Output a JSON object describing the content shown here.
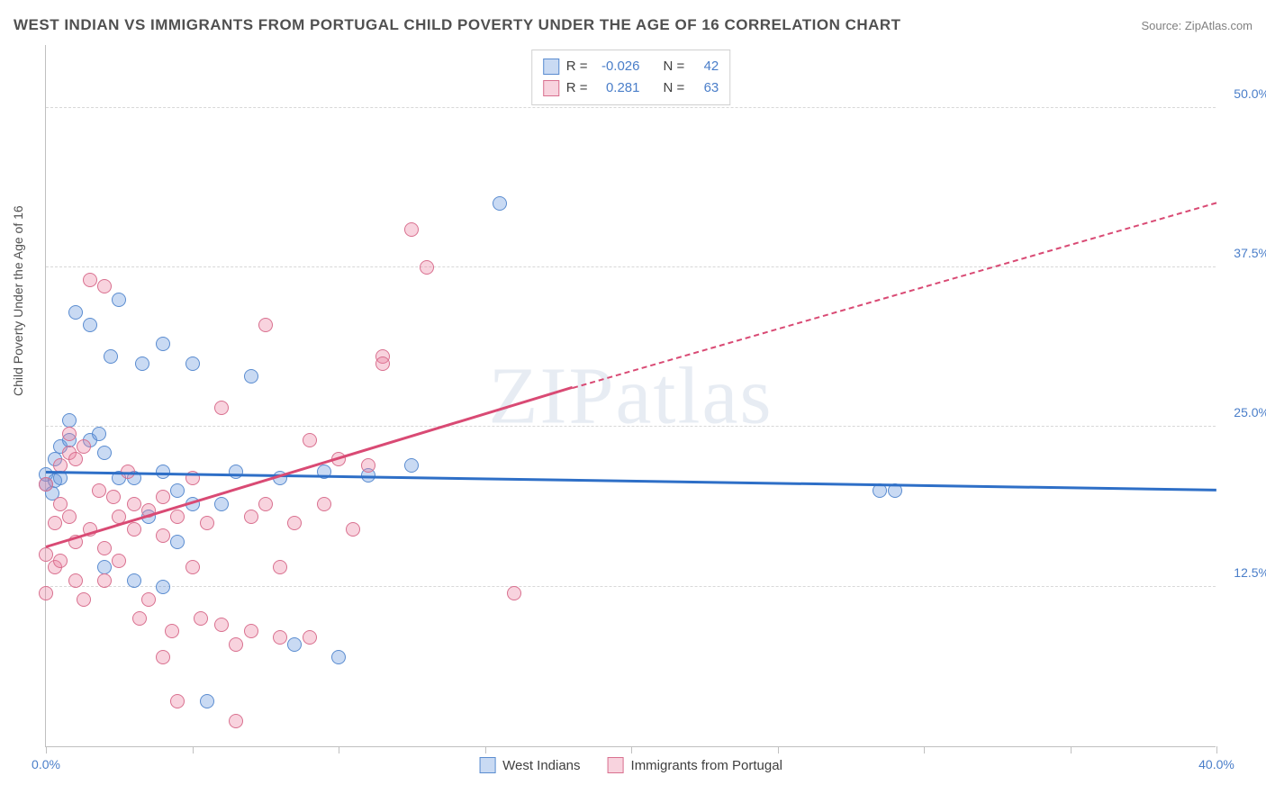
{
  "header": {
    "title": "WEST INDIAN VS IMMIGRANTS FROM PORTUGAL CHILD POVERTY UNDER THE AGE OF 16 CORRELATION CHART",
    "source": "Source: ZipAtlas.com"
  },
  "watermark": "ZIPatlas",
  "chart": {
    "type": "scatter",
    "y_label": "Child Poverty Under the Age of 16",
    "xlim": [
      0,
      40
    ],
    "ylim": [
      0,
      55
    ],
    "x_tick_positions": [
      0,
      5,
      10,
      15,
      20,
      25,
      30,
      35,
      40
    ],
    "x_tick_labels": {
      "0": "0.0%",
      "40": "40.0%"
    },
    "y_gridlines": [
      12.5,
      25.0,
      37.5,
      50.0
    ],
    "y_tick_labels": [
      "12.5%",
      "25.0%",
      "37.5%",
      "50.0%"
    ],
    "background_color": "#ffffff",
    "grid_color": "#d8d8d8",
    "axis_color": "#c0c0c0",
    "tick_label_color": "#4a7ec9",
    "point_radius": 8,
    "series": [
      {
        "name": "West Indians",
        "fill": "rgba(100,150,220,0.35)",
        "stroke": "#5a8cd0",
        "line_color": "#2e6fc7",
        "r": -0.026,
        "n": 42,
        "trend": {
          "x1": 0,
          "y1": 21.4,
          "x2": 40,
          "y2": 20.0
        },
        "points": [
          [
            0.0,
            21.3
          ],
          [
            0.0,
            20.5
          ],
          [
            0.3,
            22.5
          ],
          [
            0.3,
            20.8
          ],
          [
            0.5,
            23.5
          ],
          [
            0.5,
            21.0
          ],
          [
            0.8,
            25.5
          ],
          [
            0.8,
            24.0
          ],
          [
            1.0,
            34.0
          ],
          [
            1.5,
            33.0
          ],
          [
            1.5,
            24.0
          ],
          [
            1.8,
            24.5
          ],
          [
            2.0,
            23.0
          ],
          [
            2.0,
            14.0
          ],
          [
            2.2,
            30.5
          ],
          [
            2.5,
            35.0
          ],
          [
            2.5,
            21.0
          ],
          [
            3.0,
            21.0
          ],
          [
            3.0,
            13.0
          ],
          [
            3.3,
            30.0
          ],
          [
            3.5,
            18.0
          ],
          [
            4.0,
            31.5
          ],
          [
            4.0,
            21.5
          ],
          [
            4.0,
            12.5
          ],
          [
            4.5,
            20.0
          ],
          [
            4.5,
            16.0
          ],
          [
            5.0,
            30.0
          ],
          [
            5.0,
            19.0
          ],
          [
            5.5,
            3.5
          ],
          [
            6.0,
            19.0
          ],
          [
            6.5,
            21.5
          ],
          [
            7.0,
            29.0
          ],
          [
            8.0,
            21.0
          ],
          [
            8.5,
            8.0
          ],
          [
            9.5,
            21.5
          ],
          [
            10.0,
            7.0
          ],
          [
            11.0,
            21.2
          ],
          [
            12.5,
            22.0
          ],
          [
            15.5,
            42.5
          ],
          [
            28.5,
            20.0
          ],
          [
            29.0,
            20.0
          ],
          [
            0.2,
            19.8
          ]
        ]
      },
      {
        "name": "Immigrants from Portugal",
        "fill": "rgba(235,130,160,0.35)",
        "stroke": "#d9708f",
        "line_color": "#d94a74",
        "r": 0.281,
        "n": 63,
        "trend": {
          "x1": 0,
          "y1": 15.5,
          "x2": 18,
          "y2": 28.0
        },
        "trend_dash": {
          "x1": 18,
          "y1": 28.0,
          "x2": 40,
          "y2": 42.5
        },
        "points": [
          [
            0.0,
            20.5
          ],
          [
            0.0,
            15.0
          ],
          [
            0.0,
            12.0
          ],
          [
            0.3,
            17.5
          ],
          [
            0.3,
            14.0
          ],
          [
            0.5,
            22.0
          ],
          [
            0.5,
            19.0
          ],
          [
            0.5,
            14.5
          ],
          [
            0.8,
            24.5
          ],
          [
            0.8,
            23.0
          ],
          [
            0.8,
            18.0
          ],
          [
            1.0,
            22.5
          ],
          [
            1.0,
            16.0
          ],
          [
            1.0,
            13.0
          ],
          [
            1.3,
            23.5
          ],
          [
            1.3,
            11.5
          ],
          [
            1.5,
            36.5
          ],
          [
            1.5,
            17.0
          ],
          [
            1.8,
            20.0
          ],
          [
            2.0,
            36.0
          ],
          [
            2.0,
            15.5
          ],
          [
            2.0,
            13.0
          ],
          [
            2.3,
            19.5
          ],
          [
            2.5,
            18.0
          ],
          [
            2.5,
            14.5
          ],
          [
            2.8,
            21.5
          ],
          [
            3.0,
            19.0
          ],
          [
            3.0,
            17.0
          ],
          [
            3.2,
            10.0
          ],
          [
            3.5,
            18.5
          ],
          [
            3.5,
            11.5
          ],
          [
            4.0,
            19.5
          ],
          [
            4.0,
            16.5
          ],
          [
            4.0,
            7.0
          ],
          [
            4.3,
            9.0
          ],
          [
            4.5,
            18.0
          ],
          [
            4.5,
            3.5
          ],
          [
            5.0,
            21.0
          ],
          [
            5.0,
            14.0
          ],
          [
            5.3,
            10.0
          ],
          [
            5.5,
            17.5
          ],
          [
            6.0,
            26.5
          ],
          [
            6.0,
            9.5
          ],
          [
            6.5,
            8.0
          ],
          [
            6.5,
            2.0
          ],
          [
            7.0,
            18.0
          ],
          [
            7.0,
            9.0
          ],
          [
            7.5,
            33.0
          ],
          [
            7.5,
            19.0
          ],
          [
            8.0,
            14.0
          ],
          [
            8.0,
            8.5
          ],
          [
            8.5,
            17.5
          ],
          [
            9.0,
            24.0
          ],
          [
            9.0,
            8.5
          ],
          [
            9.5,
            19.0
          ],
          [
            10.0,
            22.5
          ],
          [
            10.5,
            17.0
          ],
          [
            11.0,
            22.0
          ],
          [
            11.5,
            30.5
          ],
          [
            11.5,
            30.0
          ],
          [
            12.5,
            40.5
          ],
          [
            13.0,
            37.5
          ],
          [
            16.0,
            12.0
          ]
        ]
      }
    ],
    "legend_top": [
      {
        "swatch_fill": "rgba(100,150,220,0.35)",
        "swatch_stroke": "#5a8cd0",
        "r_label": "R =",
        "r": "-0.026",
        "n_label": "N =",
        "n": "42"
      },
      {
        "swatch_fill": "rgba(235,130,160,0.35)",
        "swatch_stroke": "#d9708f",
        "r_label": "R =",
        "r": "0.281",
        "n_label": "N =",
        "n": "63"
      }
    ],
    "legend_bottom": [
      {
        "swatch_fill": "rgba(100,150,220,0.35)",
        "swatch_stroke": "#5a8cd0",
        "label": "West Indians"
      },
      {
        "swatch_fill": "rgba(235,130,160,0.35)",
        "swatch_stroke": "#d9708f",
        "label": "Immigrants from Portugal"
      }
    ]
  }
}
